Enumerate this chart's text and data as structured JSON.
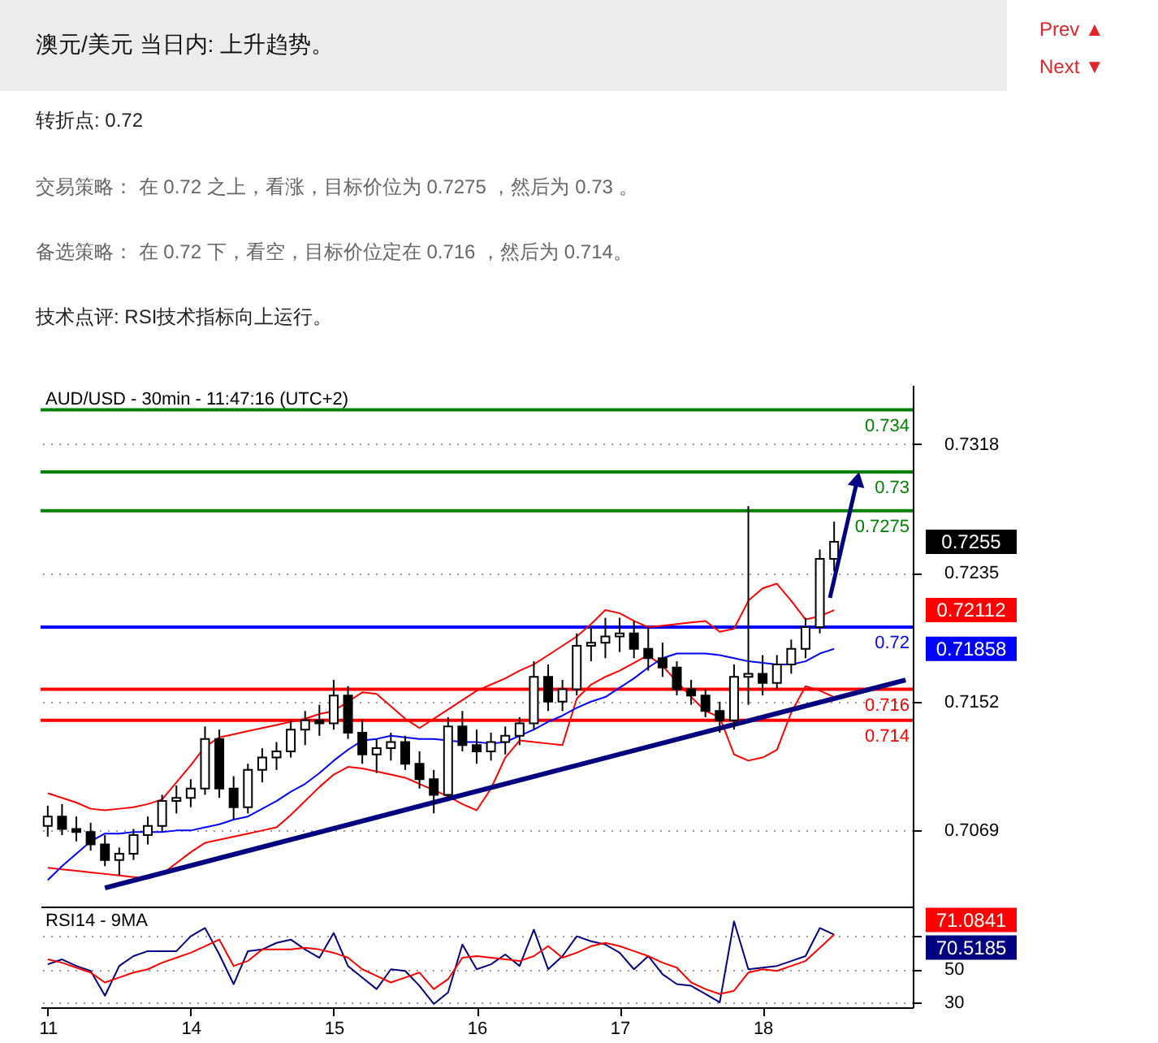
{
  "chart_data": [
    {
      "type": "other",
      "title": "澳元/美元 当日内: 上升趋势。",
      "annotations": [
        "Prev ▲",
        "Next ▼",
        "转折点: 0.72",
        "交易策略： 在 0.72 之上，看涨，目标价位为 0.7275 ，然后为 0.73 。",
        "备选策略： 在 0.72 下，看空，目标价位定在 0.716 ，然后为 0.714。",
        "技术点评: RSI技术指标向上运行。"
      ]
    },
    {
      "type": "candlestick",
      "title": "AUD/USD - 30min - 11:47:16 (UTC+2)",
      "color": "#000000",
      "categories": [
        "11",
        null,
        null,
        null,
        null,
        null,
        null,
        null,
        null,
        null,
        "14",
        null,
        null,
        null,
        null,
        null,
        null,
        null,
        null,
        null,
        "15",
        null,
        null,
        null,
        null,
        null,
        null,
        null,
        null,
        null,
        "16",
        null,
        null,
        null,
        null,
        null,
        null,
        null,
        null,
        null,
        "17",
        null,
        null,
        null,
        null,
        null,
        null,
        null,
        null,
        null,
        "18",
        null,
        null,
        null,
        null,
        null,
        null,
        null,
        null,
        null,
        null
      ],
      "ohlc": [
        [
          0.7072,
          0.7085,
          0.7065,
          0.7078
        ],
        [
          0.7078,
          0.7086,
          0.7066,
          0.707
        ],
        [
          0.707,
          0.7078,
          0.7062,
          0.7068
        ],
        [
          0.7068,
          0.7074,
          0.7056,
          0.706
        ],
        [
          0.706,
          0.7066,
          0.7046,
          0.705
        ],
        [
          0.705,
          0.7058,
          0.704,
          0.7054
        ],
        [
          0.7054,
          0.707,
          0.705,
          0.7066
        ],
        [
          0.7066,
          0.7078,
          0.706,
          0.7072
        ],
        [
          0.7072,
          0.7092,
          0.7068,
          0.7088
        ],
        [
          0.7088,
          0.7098,
          0.708,
          0.709
        ],
        [
          0.709,
          0.7102,
          0.7084,
          0.7096
        ],
        [
          0.7096,
          0.7136,
          0.7092,
          0.7128
        ],
        [
          0.7128,
          0.7134,
          0.709,
          0.7096
        ],
        [
          0.7096,
          0.7104,
          0.7076,
          0.7084
        ],
        [
          0.7084,
          0.7112,
          0.708,
          0.7108
        ],
        [
          0.7108,
          0.7122,
          0.71,
          0.7116
        ],
        [
          0.7116,
          0.7126,
          0.7108,
          0.712
        ],
        [
          0.712,
          0.714,
          0.7116,
          0.7134
        ],
        [
          0.7134,
          0.7146,
          0.7124,
          0.714
        ],
        [
          0.714,
          0.715,
          0.713,
          0.7138
        ],
        [
          0.7138,
          0.7166,
          0.7134,
          0.7156
        ],
        [
          0.7156,
          0.7162,
          0.7128,
          0.7132
        ],
        [
          0.7132,
          0.714,
          0.7112,
          0.7118
        ],
        [
          0.7118,
          0.7128,
          0.7106,
          0.7122
        ],
        [
          0.7122,
          0.7132,
          0.7114,
          0.7126
        ],
        [
          0.7126,
          0.713,
          0.7108,
          0.7112
        ],
        [
          0.7112,
          0.712,
          0.7096,
          0.7102
        ],
        [
          0.7102,
          0.7108,
          0.708,
          0.7092
        ],
        [
          0.7092,
          0.7142,
          0.709,
          0.7136
        ],
        [
          0.7136,
          0.7146,
          0.712,
          0.7124
        ],
        [
          0.7124,
          0.7134,
          0.7112,
          0.712
        ],
        [
          0.712,
          0.7132,
          0.7114,
          0.7126
        ],
        [
          0.7126,
          0.7136,
          0.7118,
          0.713
        ],
        [
          0.713,
          0.7142,
          0.7124,
          0.7138
        ],
        [
          0.7138,
          0.7178,
          0.7134,
          0.7168
        ],
        [
          0.7168,
          0.7176,
          0.7146,
          0.7152
        ],
        [
          0.7152,
          0.7166,
          0.7146,
          0.716
        ],
        [
          0.716,
          0.7196,
          0.7156,
          0.7188
        ],
        [
          0.7188,
          0.72,
          0.7178,
          0.719
        ],
        [
          0.719,
          0.7206,
          0.718,
          0.7194
        ],
        [
          0.7194,
          0.7206,
          0.7184,
          0.7196
        ],
        [
          0.7196,
          0.7204,
          0.718,
          0.7186
        ],
        [
          0.7186,
          0.72,
          0.7172,
          0.718
        ],
        [
          0.718,
          0.719,
          0.7168,
          0.7174
        ],
        [
          0.7174,
          0.7178,
          0.7156,
          0.716
        ],
        [
          0.716,
          0.7166,
          0.715,
          0.7156
        ],
        [
          0.7156,
          0.716,
          0.7142,
          0.7146
        ],
        [
          0.7146,
          0.7152,
          0.7132,
          0.714
        ],
        [
          0.714,
          0.7176,
          0.7134,
          0.7168
        ],
        [
          0.7168,
          0.7278,
          0.715,
          0.717
        ],
        [
          0.717,
          0.7182,
          0.7156,
          0.7164
        ],
        [
          0.7164,
          0.7182,
          0.716,
          0.7176
        ],
        [
          0.7176,
          0.7192,
          0.717,
          0.7186
        ],
        [
          0.7186,
          0.7206,
          0.718,
          0.72
        ],
        [
          0.72,
          0.725,
          0.7196,
          0.7244
        ],
        [
          0.7244,
          0.7268,
          0.7236,
          0.7255
        ],
        null,
        null,
        null,
        null,
        null
      ],
      "series": [
        {
          "type": "line",
          "color": "#ff0000",
          "values": [
            0.7093,
            0.709,
            0.7087,
            0.7083,
            0.7082,
            0.7083,
            0.7084,
            0.7086,
            0.7089,
            0.71,
            0.7111,
            0.7123,
            0.7129,
            0.7131,
            0.7133,
            0.7135,
            0.7137,
            0.7139,
            0.7141,
            0.7144,
            0.7146,
            0.7152,
            0.7158,
            0.7157,
            0.7149,
            0.7141,
            0.7135,
            0.7141,
            0.7147,
            0.7153,
            0.7159,
            0.7163,
            0.7167,
            0.7172,
            0.7176,
            0.7182,
            0.7188,
            0.7194,
            0.7202,
            0.7211,
            0.7209,
            0.7204,
            0.72,
            0.7201,
            0.7202,
            0.7203,
            0.7204,
            0.7197,
            0.7199,
            0.7217,
            0.7225,
            0.7228,
            0.7217,
            0.7205,
            0.7207,
            0.7211,
            null,
            null,
            null,
            null,
            null
          ]
        },
        {
          "type": "line",
          "color": "#ff0000",
          "values": [
            0.7045,
            0.7044,
            0.7043,
            0.7042,
            0.7041,
            0.704,
            0.7039,
            0.7038,
            0.7041,
            0.7048,
            0.7055,
            0.7061,
            0.7063,
            0.7065,
            0.7067,
            0.7069,
            0.7071,
            0.7079,
            0.7088,
            0.7097,
            0.7105,
            0.711,
            0.7109,
            0.7107,
            0.7105,
            0.7103,
            0.7099,
            0.7095,
            0.7091,
            0.7086,
            0.7082,
            0.7096,
            0.7116,
            0.7127,
            0.7126,
            0.7125,
            0.7124,
            0.7154,
            0.7163,
            0.7168,
            0.7172,
            0.7177,
            0.7182,
            0.7175,
            0.7165,
            0.7155,
            0.7146,
            0.7142,
            0.7118,
            0.7114,
            0.7116,
            0.7121,
            0.7145,
            0.7162,
            0.7159,
            0.7155,
            null,
            null,
            null,
            null,
            null
          ]
        },
        {
          "type": "line",
          "color": "#0000ff",
          "values": [
            0.7037,
            0.7046,
            0.7054,
            0.7062,
            0.7067,
            0.7067,
            0.7068,
            0.7068,
            0.7068,
            0.7069,
            0.7069,
            0.7071,
            0.7073,
            0.7076,
            0.7078,
            0.7083,
            0.7088,
            0.7094,
            0.7099,
            0.7106,
            0.7114,
            0.7121,
            0.7127,
            0.7128,
            0.713,
            0.7129,
            0.7128,
            0.7128,
            0.7127,
            0.7126,
            0.7126,
            0.7125,
            0.7126,
            0.713,
            0.7134,
            0.7139,
            0.7143,
            0.7148,
            0.7152,
            0.7155,
            0.7161,
            0.7167,
            0.7174,
            0.718,
            0.7183,
            0.7183,
            0.7183,
            0.7182,
            0.718,
            0.7178,
            0.7177,
            0.7176,
            0.7176,
            0.7178,
            0.7183,
            0.7186,
            null,
            null,
            null,
            null,
            null
          ]
        },
        {
          "type": "line",
          "color": "#000080",
          "values": [
            null,
            null,
            null,
            null,
            0.7032,
            null,
            null,
            null,
            null,
            null,
            null,
            null,
            null,
            null,
            null,
            null,
            null,
            null,
            null,
            null,
            null,
            null,
            null,
            null,
            null,
            null,
            null,
            null,
            null,
            null,
            null,
            null,
            null,
            null,
            null,
            null,
            null,
            null,
            null,
            null,
            null,
            null,
            null,
            null,
            null,
            null,
            null,
            null,
            null,
            null,
            null,
            null,
            null,
            null,
            null,
            null,
            null,
            null,
            null,
            null,
            0.7166
          ]
        }
      ],
      "ylim": [
        0.702,
        0.7356
      ],
      "yticks": [
        0.7069,
        0.7152,
        0.7235,
        0.7318
      ],
      "ref_lines": [
        {
          "axis": "y",
          "value": 0.734,
          "label": "0.734",
          "color": "#008000"
        },
        {
          "axis": "y",
          "value": 0.73,
          "label": "0.73",
          "color": "#008000"
        },
        {
          "axis": "y",
          "value": 0.7275,
          "label": "0.7275",
          "color": "#008000"
        },
        {
          "axis": "y",
          "value": 0.72,
          "label": "0.72",
          "color": "#0000ff"
        },
        {
          "axis": "y",
          "value": 0.716,
          "label": "0.716",
          "color": "#ff0000"
        },
        {
          "axis": "y",
          "value": 0.714,
          "label": "0.714",
          "color": "#ff0000"
        }
      ],
      "annotations": [
        "0.7255",
        "0.72112",
        "0.71858"
      ],
      "grid": "y",
      "tick_labels": "y"
    },
    {
      "type": "line",
      "title": "RSI14 - 9MA",
      "categories": [
        "11",
        null,
        null,
        null,
        null,
        null,
        null,
        null,
        null,
        null,
        "14",
        null,
        null,
        null,
        null,
        null,
        null,
        null,
        null,
        null,
        "15",
        null,
        null,
        null,
        null,
        null,
        null,
        null,
        null,
        null,
        "16",
        null,
        null,
        null,
        null,
        null,
        null,
        null,
        null,
        null,
        "17",
        null,
        null,
        null,
        null,
        null,
        null,
        null,
        null,
        null,
        "18",
        null,
        null,
        null,
        null,
        null,
        null,
        null,
        null,
        null,
        null
      ],
      "series": [
        {
          "color": "#000080",
          "values": [
            53,
            56,
            52,
            49,
            34,
            52,
            58,
            61,
            61,
            61,
            70,
            75,
            59,
            41,
            61,
            62,
            66,
            68,
            62,
            57,
            72,
            52,
            45,
            38,
            50,
            49,
            40,
            29,
            36,
            65,
            50,
            53,
            59,
            52,
            74,
            50,
            58,
            70,
            67,
            65,
            60,
            50,
            58,
            47,
            41,
            40,
            35,
            30,
            79,
            50,
            51,
            52,
            55,
            58,
            75,
            71,
            null,
            null,
            null,
            null,
            null
          ]
        },
        {
          "color": "#ff0000",
          "values": [
            56,
            54,
            51,
            48,
            42,
            45,
            48,
            50,
            54,
            57,
            60,
            64,
            68,
            52,
            55,
            62,
            62,
            62,
            63,
            62,
            60,
            57,
            50,
            46,
            42,
            45,
            48,
            38,
            44,
            57,
            58,
            57,
            56,
            55,
            58,
            64,
            57,
            60,
            64,
            66,
            64,
            61,
            58,
            54,
            51,
            42,
            38,
            35,
            37,
            48,
            50,
            49,
            52,
            55,
            63,
            71,
            null,
            null,
            null,
            null,
            null
          ]
        }
      ],
      "ylim": [
        27,
        88
      ],
      "yticks": [
        30,
        50,
        {
          "value": 70,
          "label": null
        }
      ],
      "annotations": [
        "71.0841",
        "70.5185"
      ],
      "grid": "y"
    }
  ]
}
